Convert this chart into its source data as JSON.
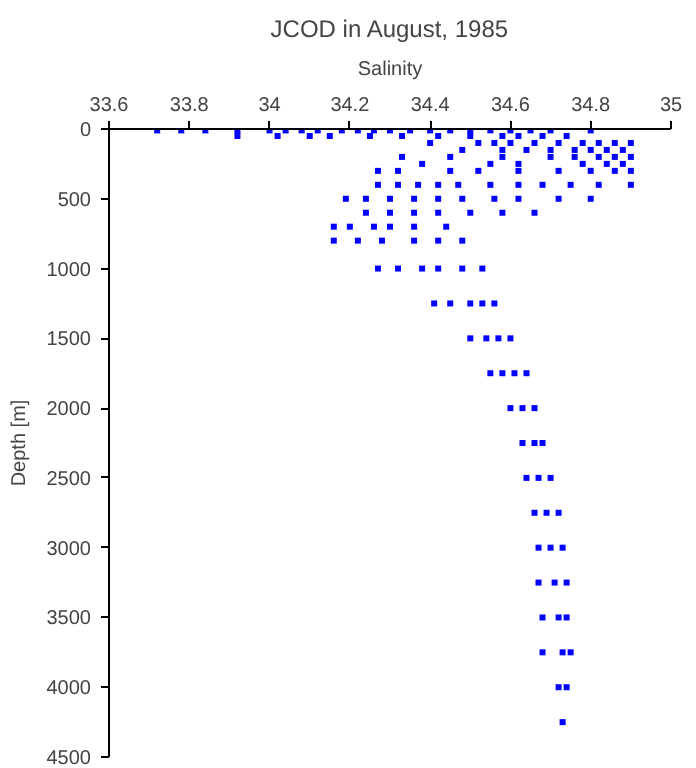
{
  "chart_data": {
    "type": "scatter",
    "title": "JCOD in August, 1985",
    "xlabel": "Salinity",
    "ylabel": "Depth [m]",
    "xlim": [
      33.6,
      35
    ],
    "xticks": [
      33.6,
      33.8,
      34,
      34.2,
      34.4,
      34.6,
      34.8,
      35
    ],
    "ylim": [
      4500,
      0
    ],
    "yticks": [
      0,
      500,
      1000,
      1500,
      2000,
      2500,
      3000,
      3500,
      4000,
      4500
    ],
    "grid": false,
    "marker": "square",
    "series": [
      {
        "color": "#0000ff",
        "x": [
          33.72,
          33.78,
          33.84,
          33.92,
          34.0,
          34.04,
          34.08,
          34.12,
          34.18,
          34.22,
          34.26,
          34.3,
          34.35,
          34.4,
          34.45,
          34.5,
          34.55,
          34.6,
          34.65,
          34.7,
          34.8,
          33.92,
          34.02,
          34.1,
          34.15,
          34.25,
          34.33,
          34.42,
          34.5,
          34.58,
          34.62,
          34.68,
          34.74,
          34.4,
          34.52,
          34.56,
          34.6,
          34.66,
          34.72,
          34.78,
          34.82,
          34.86,
          34.9,
          34.48,
          34.58,
          34.64,
          34.7,
          34.76,
          34.8,
          34.84,
          34.88,
          34.33,
          34.45,
          34.58,
          34.7,
          34.76,
          34.82,
          34.86,
          34.9,
          34.38,
          34.55,
          34.62,
          34.78,
          34.84,
          34.88,
          34.27,
          34.32,
          34.45,
          34.52,
          34.62,
          34.72,
          34.8,
          34.86,
          34.9,
          34.27,
          34.32,
          34.37,
          34.42,
          34.47,
          34.55,
          34.62,
          34.68,
          34.75,
          34.82,
          34.9,
          34.19,
          34.24,
          34.3,
          34.36,
          34.42,
          34.48,
          34.56,
          34.62,
          34.72,
          34.8,
          34.24,
          34.3,
          34.36,
          34.42,
          34.5,
          34.58,
          34.66,
          34.16,
          34.2,
          34.26,
          34.3,
          34.36,
          34.44,
          34.16,
          34.22,
          34.28,
          34.36,
          34.42,
          34.48,
          34.27,
          34.32,
          34.38,
          34.42,
          34.48,
          34.53,
          34.41,
          34.45,
          34.5,
          34.53,
          34.56,
          34.5,
          34.54,
          34.57,
          34.6,
          34.55,
          34.58,
          34.61,
          34.64,
          34.6,
          34.63,
          34.66,
          34.63,
          34.66,
          34.68,
          34.64,
          34.67,
          34.7,
          34.66,
          34.69,
          34.72,
          34.67,
          34.7,
          34.73,
          34.67,
          34.71,
          34.74,
          34.68,
          34.72,
          34.74,
          34.68,
          34.73,
          34.75,
          34.72,
          34.74,
          34.73
        ],
        "values": [
          10,
          10,
          10,
          10,
          10,
          10,
          10,
          10,
          10,
          10,
          10,
          10,
          10,
          10,
          10,
          10,
          10,
          10,
          10,
          10,
          10,
          50,
          50,
          50,
          50,
          50,
          50,
          50,
          50,
          50,
          50,
          50,
          50,
          100,
          100,
          100,
          100,
          100,
          100,
          100,
          100,
          100,
          100,
          150,
          150,
          150,
          150,
          150,
          150,
          150,
          150,
          200,
          200,
          200,
          200,
          200,
          200,
          200,
          200,
          250,
          250,
          250,
          250,
          250,
          250,
          300,
          300,
          300,
          300,
          300,
          300,
          300,
          300,
          300,
          400,
          400,
          400,
          400,
          400,
          400,
          400,
          400,
          400,
          400,
          400,
          500,
          500,
          500,
          500,
          500,
          500,
          500,
          500,
          500,
          500,
          600,
          600,
          600,
          600,
          600,
          600,
          600,
          700,
          700,
          700,
          700,
          700,
          700,
          800,
          800,
          800,
          800,
          800,
          800,
          1000,
          1000,
          1000,
          1000,
          1000,
          1000,
          1250,
          1250,
          1250,
          1250,
          1250,
          1500,
          1500,
          1500,
          1500,
          1750,
          1750,
          1750,
          1750,
          2000,
          2000,
          2000,
          2250,
          2250,
          2250,
          2500,
          2500,
          2500,
          2750,
          2750,
          2750,
          3000,
          3000,
          3000,
          3250,
          3250,
          3250,
          3500,
          3500,
          3500,
          3750,
          3750,
          3750,
          4000,
          4000,
          4250
        ]
      }
    ]
  }
}
